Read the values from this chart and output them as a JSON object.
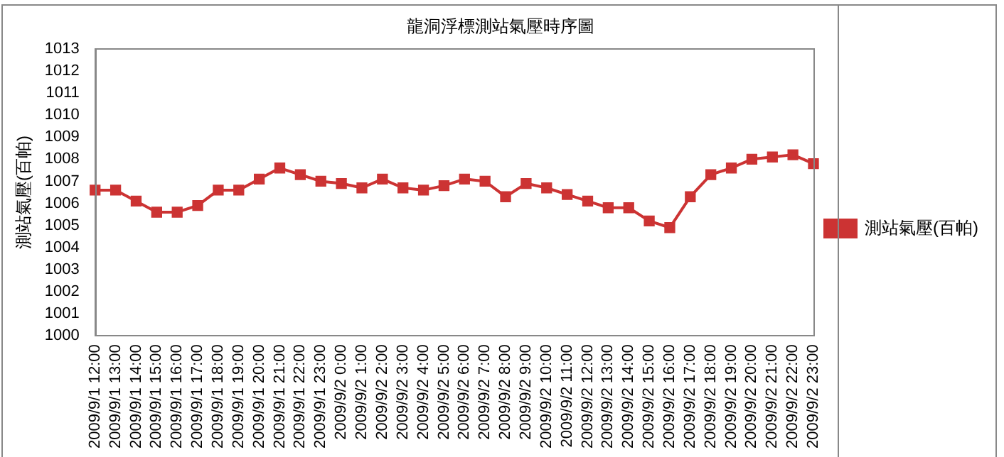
{
  "chart_data": {
    "type": "line",
    "title": "龍洞浮標測站氣壓時序圖",
    "ylabel": "測站氣壓(百帕)",
    "categories": [
      "2009/9/1 12:00",
      "2009/9/1 13:00",
      "2009/9/1 14:00",
      "2009/9/1 15:00",
      "2009/9/1 16:00",
      "2009/9/1 17:00",
      "2009/9/1 18:00",
      "2009/9/1 19:00",
      "2009/9/1 20:00",
      "2009/9/1 21:00",
      "2009/9/1 22:00",
      "2009/9/1 23:00",
      "2009/9/2 0:00",
      "2009/9/2 1:00",
      "2009/9/2 2:00",
      "2009/9/2 3:00",
      "2009/9/2 4:00",
      "2009/9/2 5:00",
      "2009/9/2 6:00",
      "2009/9/2 7:00",
      "2009/9/2 8:00",
      "2009/9/2 9:00",
      "2009/9/2 10:00",
      "2009/9/2 11:00",
      "2009/9/2 12:00",
      "2009/9/2 13:00",
      "2009/9/2 14:00",
      "2009/9/2 15:00",
      "2009/9/2 16:00",
      "2009/9/2 17:00",
      "2009/9/2 18:00",
      "2009/9/2 19:00",
      "2009/9/2 20:00",
      "2009/9/2 21:00",
      "2009/9/2 22:00",
      "2009/9/2 23:00"
    ],
    "series": [
      {
        "name": "測站氣壓(百帕)",
        "color": "#cc3333",
        "values": [
          1006.6,
          1006.6,
          1006.1,
          1005.6,
          1005.6,
          1005.9,
          1006.6,
          1006.6,
          1007.1,
          1007.6,
          1007.3,
          1007.0,
          1006.9,
          1006.7,
          1007.1,
          1006.7,
          1006.6,
          1006.8,
          1007.1,
          1007.0,
          1006.3,
          1006.9,
          1006.7,
          1006.4,
          1006.1,
          1005.8,
          1005.8,
          1005.2,
          1004.9,
          1006.3,
          1007.3,
          1007.6,
          1008.0,
          1008.1,
          1008.2,
          1007.8
        ]
      }
    ],
    "ylim": [
      1000,
      1013
    ],
    "yticks": [
      1000,
      1001,
      1002,
      1003,
      1004,
      1005,
      1006,
      1007,
      1008,
      1009,
      1010,
      1011,
      1012,
      1013
    ],
    "grid": false,
    "legend": "right",
    "marker": "square",
    "line_style": "solid"
  }
}
